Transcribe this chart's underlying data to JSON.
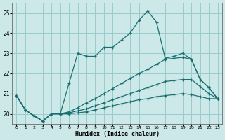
{
  "xlabel": "Humidex (Indice chaleur)",
  "bg_color": "#cce8e8",
  "grid_color": "#99cccc",
  "line_color": "#1a7070",
  "xlim": [
    -0.5,
    23.5
  ],
  "ylim": [
    19.5,
    25.5
  ],
  "yticks": [
    20,
    21,
    22,
    23,
    24,
    25
  ],
  "xticks": [
    0,
    1,
    2,
    3,
    4,
    5,
    6,
    7,
    8,
    9,
    10,
    11,
    12,
    13,
    14,
    15,
    16,
    17,
    18,
    19,
    20,
    21,
    22,
    23
  ],
  "series": [
    {
      "x": [
        0,
        1,
        2,
        3,
        4,
        5,
        6,
        7,
        8,
        9,
        10,
        11,
        12,
        13,
        14,
        15,
        16,
        17,
        18,
        19,
        20,
        21,
        22,
        23
      ],
      "y": [
        20.9,
        20.2,
        19.9,
        19.65,
        20.0,
        20.0,
        21.5,
        23.0,
        22.85,
        22.85,
        23.3,
        23.3,
        23.65,
        24.0,
        24.65,
        25.1,
        24.55,
        22.75,
        22.85,
        23.0,
        22.7,
        21.7,
        21.3,
        20.75
      ]
    },
    {
      "x": [
        0,
        1,
        2,
        3,
        4,
        5,
        6,
        7,
        8,
        9,
        10,
        11,
        12,
        13,
        14,
        15,
        16,
        17,
        18,
        19,
        20,
        21,
        22,
        23
      ],
      "y": [
        20.9,
        20.2,
        19.9,
        19.65,
        20.0,
        20.0,
        20.1,
        20.3,
        20.55,
        20.75,
        21.0,
        21.25,
        21.5,
        21.75,
        22.0,
        22.2,
        22.45,
        22.7,
        22.75,
        22.8,
        22.7,
        21.7,
        21.3,
        20.75
      ]
    },
    {
      "x": [
        0,
        1,
        2,
        3,
        4,
        5,
        6,
        7,
        8,
        9,
        10,
        11,
        12,
        13,
        14,
        15,
        16,
        17,
        18,
        19,
        20,
        21,
        22,
        23
      ],
      "y": [
        20.9,
        20.2,
        19.9,
        19.65,
        20.0,
        20.0,
        20.05,
        20.15,
        20.25,
        20.4,
        20.55,
        20.7,
        20.85,
        21.0,
        21.15,
        21.3,
        21.45,
        21.6,
        21.65,
        21.7,
        21.7,
        21.35,
        21.0,
        20.75
      ]
    },
    {
      "x": [
        0,
        1,
        2,
        3,
        4,
        5,
        6,
        7,
        8,
        9,
        10,
        11,
        12,
        13,
        14,
        15,
        16,
        17,
        18,
        19,
        20,
        21,
        22,
        23
      ],
      "y": [
        20.9,
        20.2,
        19.9,
        19.65,
        20.0,
        20.0,
        20.0,
        20.05,
        20.1,
        20.2,
        20.3,
        20.4,
        20.5,
        20.6,
        20.7,
        20.75,
        20.85,
        20.9,
        20.95,
        21.0,
        20.95,
        20.85,
        20.75,
        20.75
      ]
    }
  ]
}
